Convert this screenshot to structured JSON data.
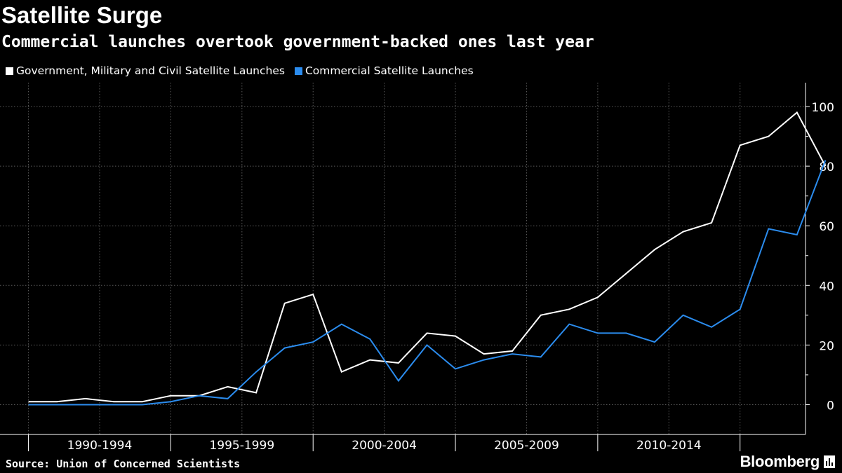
{
  "header": {
    "title": "Satellite Surge",
    "subtitle": "Commercial launches overtook government-backed ones last year"
  },
  "footer": {
    "source": "Source: Union of Concerned Scientists",
    "brand": "Bloomberg"
  },
  "chart_data": {
    "type": "line",
    "x": [
      1989,
      1990,
      1991,
      1992,
      1993,
      1994,
      1995,
      1996,
      1997,
      1998,
      1999,
      2000,
      2001,
      2002,
      2003,
      2004,
      2005,
      2006,
      2007,
      2008,
      2009,
      2010,
      2011,
      2012,
      2013,
      2014,
      2015,
      2016
    ],
    "x_tick_labels": [
      "1990-1994",
      "1995-1999",
      "2000-2004",
      "2005-2009",
      "2010-2014"
    ],
    "x_tick_label_centers": [
      1991.5,
      1996.5,
      2001.5,
      2006.5,
      2011.5
    ],
    "x_tick_marks": [
      1989,
      1994,
      1999,
      2004,
      2009,
      2014
    ],
    "xlim": [
      1988.0,
      2016.3
    ],
    "ylim": [
      -10,
      108
    ],
    "y_ticks": [
      0,
      20,
      40,
      60,
      80,
      100
    ],
    "y_tick_labels": [
      "0",
      "20",
      "40",
      "60",
      "80",
      "100"
    ],
    "grid": true,
    "legend_position": "top-left",
    "series": [
      {
        "name": "Government, Military and Civil Satellite Launches",
        "color": "#ffffff",
        "values": [
          1,
          1,
          2,
          1,
          1,
          3,
          3,
          6,
          4,
          34,
          37,
          11,
          15,
          14,
          24,
          23,
          17,
          18,
          30,
          32,
          36,
          44,
          52,
          58,
          61,
          87,
          90,
          98
        ]
      },
      {
        "name": "Commercial Satellite Launches",
        "color": "#2b8cee",
        "values": [
          0,
          0,
          0,
          0,
          0,
          1,
          3,
          2,
          11,
          19,
          21,
          27,
          22,
          8,
          20,
          12,
          15,
          17,
          16,
          27,
          24,
          24,
          21,
          30,
          26,
          32,
          59,
          57
        ]
      }
    ],
    "final_point": {
      "x": 2017,
      "government": 80,
      "commercial": 82
    }
  },
  "colors": {
    "background": "#000000",
    "grid": "#666666",
    "axis_text": "#ffffff"
  }
}
